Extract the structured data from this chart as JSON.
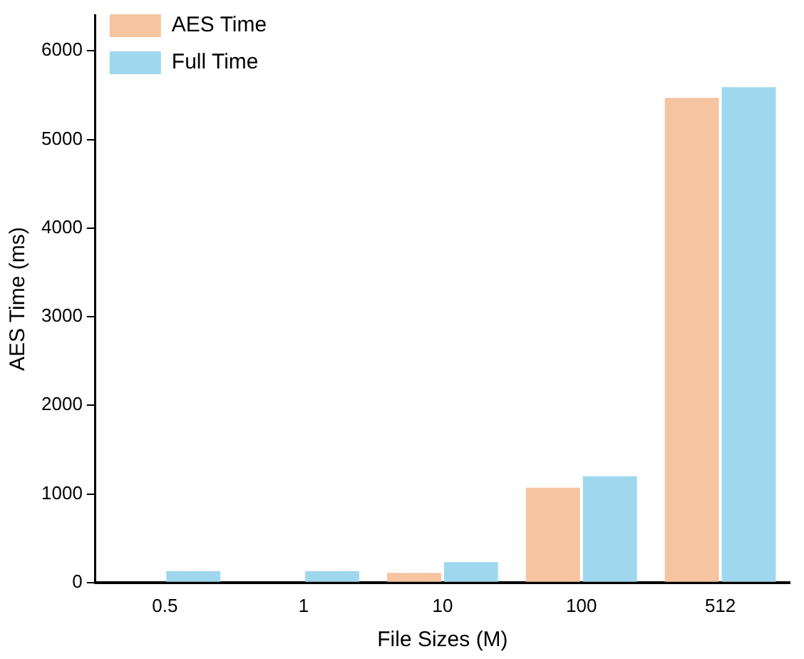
{
  "chart_data": {
    "type": "bar",
    "xlabel": "File Sizes (M)",
    "ylabel": "AES Time (ms)",
    "categories": [
      "0.5",
      "1",
      "10",
      "100",
      "512"
    ],
    "series": [
      {
        "name": "AES Time",
        "color": "#f6c4a0",
        "values": [
          0,
          0,
          110,
          1070,
          5470
        ]
      },
      {
        "name": "Full Time",
        "color": "#9fd8ee",
        "values": [
          130,
          130,
          230,
          1200,
          5590
        ]
      }
    ],
    "ylim": [
      0,
      6400
    ],
    "yticks": [
      0,
      1000,
      2000,
      3000,
      4000,
      5000,
      6000
    ],
    "grid": false,
    "legend": "top left"
  }
}
